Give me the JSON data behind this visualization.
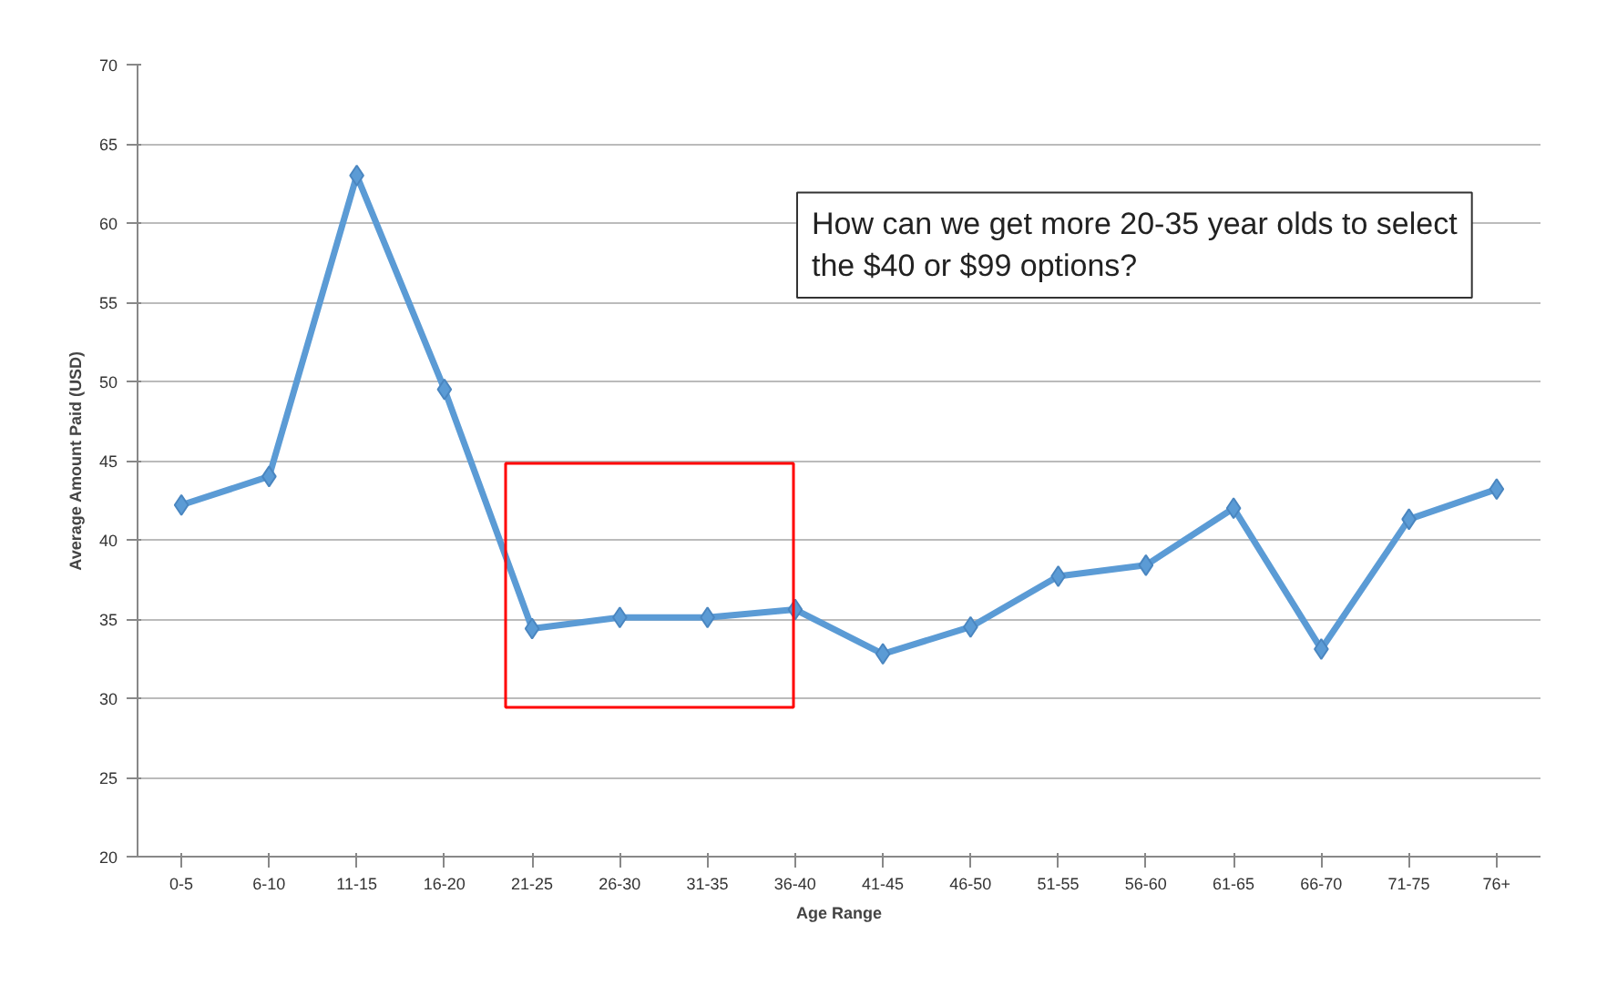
{
  "chart_data": {
    "type": "line",
    "xlabel": "Age Range",
    "ylabel": "Average Amount Paid (USD)",
    "categories": [
      "0-5",
      "6-10",
      "11-15",
      "16-20",
      "21-25",
      "26-30",
      "31-35",
      "36-40",
      "41-45",
      "46-50",
      "51-55",
      "56-60",
      "61-65",
      "66-70",
      "71-75",
      "76+"
    ],
    "series": [
      {
        "color": "#5b9bd5",
        "values": [
          42.2,
          44.0,
          63.0,
          49.5,
          34.4,
          35.1,
          35.1,
          35.6,
          32.8,
          34.5,
          37.7,
          38.4,
          42.0,
          33.1,
          41.3,
          43.2
        ]
      }
    ],
    "ylim": [
      20,
      70
    ],
    "yticks": [
      20,
      25,
      30,
      35,
      40,
      45,
      50,
      55,
      60,
      65,
      70
    ],
    "grid": "y",
    "marker": "diamond",
    "annotations": [
      "How can we get more 20-35 year olds to select the $40 or $99 options?"
    ]
  }
}
